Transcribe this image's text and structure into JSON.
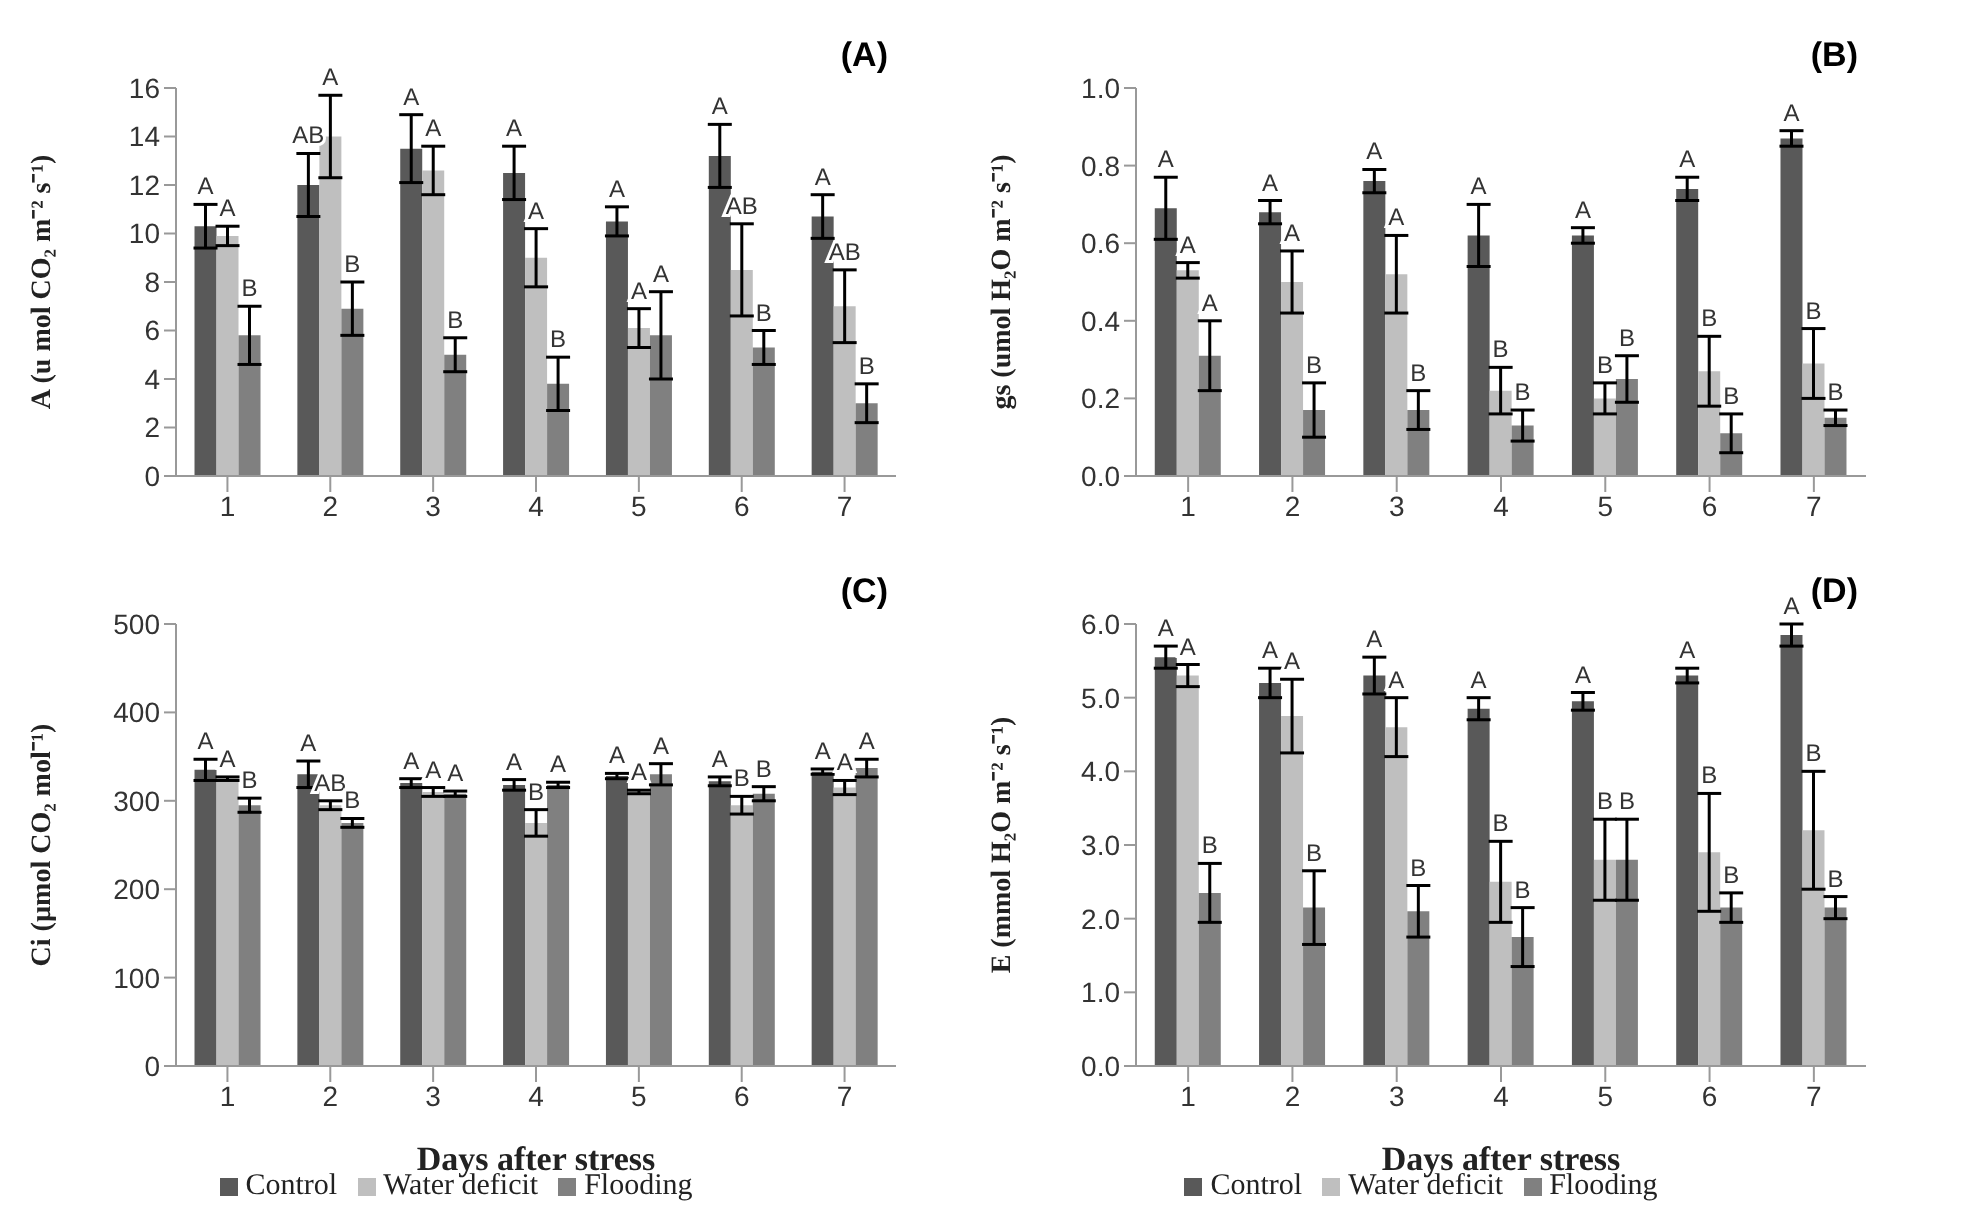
{
  "chart_data": [
    {
      "type": "bar",
      "title": "(A)",
      "ylabel": "A (u mol CO₂ m⁻² s⁻¹)",
      "categories": [
        "1",
        "2",
        "3",
        "4",
        "5",
        "6",
        "7"
      ],
      "ylim": [
        0,
        16
      ],
      "yticks": [
        0,
        2,
        4,
        6,
        8,
        10,
        12,
        14,
        16
      ],
      "series": [
        {
          "color": "#595959",
          "values": [
            10.3,
            12.0,
            13.5,
            12.5,
            10.5,
            13.2,
            10.7
          ],
          "errors": [
            0.9,
            1.3,
            1.4,
            1.1,
            0.6,
            1.3,
            0.9
          ],
          "value_labels": [
            "A",
            "AB",
            "A",
            "A",
            "A",
            "A",
            "A"
          ]
        },
        {
          "color": "#bfbfbf",
          "values": [
            9.9,
            14.0,
            12.6,
            9.0,
            6.1,
            8.5,
            7.0
          ],
          "errors": [
            0.4,
            1.7,
            1.0,
            1.2,
            0.8,
            1.9,
            1.5
          ],
          "value_labels": [
            "A",
            "A",
            "A",
            "A",
            "A",
            "AB",
            "AB"
          ]
        },
        {
          "color": "#808080",
          "values": [
            5.8,
            6.9,
            5.0,
            3.8,
            5.8,
            5.3,
            3.0
          ],
          "errors": [
            1.2,
            1.1,
            0.7,
            1.1,
            1.8,
            0.7,
            0.8
          ],
          "value_labels": [
            "B",
            "B",
            "B",
            "B",
            "A",
            "B",
            "B"
          ]
        }
      ]
    },
    {
      "type": "bar",
      "title": "(B)",
      "ylabel": "gs (umol H₂O m⁻² s⁻¹)",
      "categories": [
        "1",
        "2",
        "3",
        "4",
        "5",
        "6",
        "7"
      ],
      "ylim": [
        0,
        1
      ],
      "yticks": [
        {
          "value": 0,
          "label": "0.0"
        },
        {
          "value": 0.2,
          "label": "0.2"
        },
        {
          "value": 0.4,
          "label": "0.4"
        },
        {
          "value": 0.6,
          "label": "0.6"
        },
        {
          "value": 0.8,
          "label": "0.8"
        },
        {
          "value": 1,
          "label": "1.0"
        }
      ],
      "series": [
        {
          "color": "#595959",
          "values": [
            0.69,
            0.68,
            0.76,
            0.62,
            0.62,
            0.74,
            0.87
          ],
          "errors": [
            0.08,
            0.03,
            0.03,
            0.08,
            0.02,
            0.03,
            0.02
          ],
          "value_labels": [
            "A",
            "A",
            "A",
            "A",
            "A",
            "A",
            "A"
          ]
        },
        {
          "color": "#bfbfbf",
          "values": [
            0.53,
            0.5,
            0.52,
            0.22,
            0.2,
            0.27,
            0.29
          ],
          "errors": [
            0.02,
            0.08,
            0.1,
            0.06,
            0.04,
            0.09,
            0.09
          ],
          "value_labels": [
            "A",
            "A",
            "A",
            "B",
            "B",
            "B",
            "B"
          ]
        },
        {
          "color": "#808080",
          "values": [
            0.31,
            0.17,
            0.17,
            0.13,
            0.25,
            0.11,
            0.15
          ],
          "errors": [
            0.09,
            0.07,
            0.05,
            0.04,
            0.06,
            0.05,
            0.02
          ],
          "value_labels": [
            "A",
            "B",
            "B",
            "B",
            "B",
            "B",
            "B"
          ]
        }
      ]
    },
    {
      "type": "bar",
      "title": "(C)",
      "xlabel": "Days after stress",
      "ylabel": "Ci (µmol CO₂ mol⁻¹)",
      "legend": "bottom",
      "categories": [
        "1",
        "2",
        "3",
        "4",
        "5",
        "6",
        "7"
      ],
      "ylim": [
        0,
        500
      ],
      "yticks": [
        0,
        100,
        200,
        300,
        400,
        500
      ],
      "series": [
        {
          "name": "Control",
          "color": "#595959",
          "values": [
            335,
            330,
            320,
            318,
            328,
            322,
            333
          ],
          "errors": [
            12,
            15,
            5,
            6,
            3,
            5,
            3
          ],
          "value_labels": [
            "A",
            "A",
            "A",
            "A",
            "A",
            "A",
            "A"
          ]
        },
        {
          "name": "Water deficit",
          "color": "#bfbfbf",
          "values": [
            325,
            295,
            310,
            275,
            310,
            295,
            315
          ],
          "errors": [
            2,
            5,
            5,
            15,
            2,
            10,
            8
          ],
          "value_labels": [
            "A",
            "AB",
            "A",
            "B",
            "A",
            "B",
            "A"
          ]
        },
        {
          "name": "Flooding",
          "color": "#808080",
          "values": [
            295,
            275,
            308,
            318,
            330,
            308,
            337
          ],
          "errors": [
            8,
            5,
            3,
            3,
            12,
            8,
            10
          ],
          "value_labels": [
            "B",
            "B",
            "A",
            "A",
            "A",
            "B",
            "A"
          ]
        }
      ]
    },
    {
      "type": "bar",
      "title": "(D)",
      "xlabel": "Days after stress",
      "ylabel": "E (mmol H₂O m⁻² s⁻¹)",
      "legend": "bottom",
      "categories": [
        "1",
        "2",
        "3",
        "4",
        "5",
        "6",
        "7"
      ],
      "ylim": [
        0,
        6
      ],
      "yticks": [
        {
          "value": 0,
          "label": "0.0"
        },
        {
          "value": 1,
          "label": "1.0"
        },
        {
          "value": 2,
          "label": "2.0"
        },
        {
          "value": 3,
          "label": "3.0"
        },
        {
          "value": 4,
          "label": "4.0"
        },
        {
          "value": 5,
          "label": "5.0"
        },
        {
          "value": 6,
          "label": "6.0"
        }
      ],
      "series": [
        {
          "name": "Control",
          "color": "#595959",
          "values": [
            5.55,
            5.2,
            5.3,
            4.85,
            4.95,
            5.3,
            5.85
          ],
          "errors": [
            0.15,
            0.2,
            0.25,
            0.15,
            0.12,
            0.1,
            0.15
          ],
          "value_labels": [
            "A",
            "A",
            "A",
            "A",
            "A",
            "A",
            "A"
          ]
        },
        {
          "name": "Water deficit",
          "color": "#bfbfbf",
          "values": [
            5.3,
            4.75,
            4.6,
            2.5,
            2.8,
            2.9,
            3.2
          ],
          "errors": [
            0.15,
            0.5,
            0.4,
            0.55,
            0.55,
            0.8,
            0.8
          ],
          "value_labels": [
            "A",
            "A",
            "A",
            "B",
            "B",
            "B",
            "B"
          ]
        },
        {
          "name": "Flooding",
          "color": "#808080",
          "values": [
            2.35,
            2.15,
            2.1,
            1.75,
            2.8,
            2.15,
            2.15
          ],
          "errors": [
            0.4,
            0.5,
            0.35,
            0.4,
            0.55,
            0.2,
            0.15
          ],
          "value_labels": [
            "B",
            "B",
            "B",
            "B",
            "B",
            "B",
            "B"
          ]
        }
      ]
    }
  ]
}
